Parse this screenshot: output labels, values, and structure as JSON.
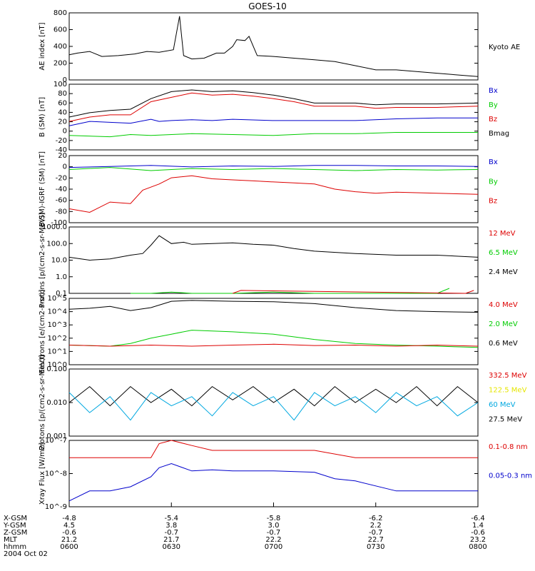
{
  "title": "GOES-10",
  "date_label": "2004 Oct 02",
  "colors": {
    "black": "#000000",
    "red": "#dd0000",
    "green": "#00cc00",
    "blue": "#0000cc",
    "yellow": "#e6e600",
    "cyan": "#00a8e0"
  },
  "bottom_axis": {
    "rows": [
      {
        "label": "X-GSM",
        "values": [
          "-4.8",
          "-5.4",
          "-5.8",
          "-6.2",
          "-6.4"
        ]
      },
      {
        "label": "Y-GSM",
        "values": [
          "4.5",
          "3.8",
          "3.0",
          "2.2",
          "1.4"
        ]
      },
      {
        "label": "Z-GSM",
        "values": [
          "-0.6",
          "-0.7",
          "-0.7",
          "-0.7",
          "-0.6"
        ]
      },
      {
        "label": "MLT",
        "values": [
          "21.2",
          "21.7",
          "22.2",
          "22.7",
          "23.2"
        ]
      },
      {
        "label": "hhmm",
        "values": [
          "0600",
          "0630",
          "0700",
          "0730",
          "0800"
        ]
      }
    ]
  },
  "chart_data": [
    {
      "type": "line",
      "ylabel": "AE index [nT]",
      "ylim": [
        0,
        800
      ],
      "yticks": [
        "0",
        "200",
        "400",
        "600",
        "800"
      ],
      "legend": [
        "Kyoto AE"
      ],
      "series": [
        {
          "name": "Kyoto AE",
          "color": "black",
          "x": [
            0,
            0.02,
            0.05,
            0.08,
            0.12,
            0.16,
            0.19,
            0.22,
            0.255,
            0.27,
            0.28,
            0.3,
            0.33,
            0.36,
            0.38,
            0.4,
            0.41,
            0.43,
            0.44,
            0.46,
            0.5,
            0.55,
            0.6,
            0.65,
            0.7,
            0.75,
            0.8,
            0.85,
            0.9,
            0.95,
            1.0
          ],
          "y": [
            300,
            320,
            340,
            280,
            290,
            310,
            340,
            330,
            360,
            760,
            290,
            250,
            260,
            320,
            320,
            400,
            480,
            470,
            520,
            290,
            280,
            260,
            240,
            220,
            170,
            120,
            120,
            100,
            80,
            60,
            40
          ]
        }
      ]
    },
    {
      "type": "line",
      "ylabel": "B (SM) [nT]",
      "ylim": [
        -45,
        105
      ],
      "yticks": [
        "-40",
        "-20",
        "0",
        "20",
        "40",
        "60",
        "80",
        "100"
      ],
      "legend": [
        "Bx",
        "By",
        "Bz",
        "Bmag"
      ],
      "series": [
        {
          "name": "Bx",
          "color": "blue",
          "x": [
            0,
            0.05,
            0.1,
            0.15,
            0.2,
            0.22,
            0.25,
            0.3,
            0.35,
            0.4,
            0.5,
            0.6,
            0.7,
            0.8,
            0.9,
            1.0
          ],
          "y": [
            10,
            20,
            18,
            16,
            25,
            20,
            22,
            24,
            22,
            25,
            22,
            22,
            22,
            26,
            28,
            28
          ]
        },
        {
          "name": "By",
          "color": "green",
          "x": [
            0,
            0.1,
            0.15,
            0.2,
            0.3,
            0.4,
            0.5,
            0.6,
            0.7,
            0.8,
            0.9,
            1.0
          ],
          "y": [
            -12,
            -15,
            -10,
            -12,
            -8,
            -10,
            -12,
            -8,
            -8,
            -5,
            -5,
            -5
          ]
        },
        {
          "name": "Bz",
          "color": "red",
          "x": [
            0,
            0.05,
            0.1,
            0.15,
            0.2,
            0.25,
            0.3,
            0.35,
            0.4,
            0.45,
            0.5,
            0.55,
            0.6,
            0.7,
            0.75,
            0.8,
            0.9,
            1.0
          ],
          "y": [
            20,
            30,
            35,
            35,
            65,
            75,
            85,
            80,
            82,
            78,
            72,
            65,
            55,
            55,
            50,
            52,
            52,
            55
          ]
        },
        {
          "name": "Bmag",
          "color": "black",
          "x": [
            0,
            0.05,
            0.1,
            0.15,
            0.2,
            0.25,
            0.3,
            0.35,
            0.4,
            0.45,
            0.5,
            0.55,
            0.6,
            0.7,
            0.75,
            0.8,
            0.9,
            1.0
          ],
          "y": [
            30,
            40,
            45,
            48,
            72,
            88,
            92,
            88,
            90,
            86,
            80,
            72,
            62,
            62,
            58,
            60,
            60,
            62
          ]
        }
      ]
    },
    {
      "type": "line",
      "ylabel": "B(SM)-IGRF (SM) [nT]",
      "ylim": [
        -105,
        25
      ],
      "yticks": [
        "-100",
        "-80",
        "-60",
        "-40",
        "-20",
        "0",
        "20"
      ],
      "legend": [
        "Bx",
        "By",
        "Bz"
      ],
      "series": [
        {
          "name": "Bx",
          "color": "blue",
          "x": [
            0,
            0.1,
            0.2,
            0.3,
            0.4,
            0.5,
            0.6,
            0.7,
            0.8,
            0.9,
            1.0
          ],
          "y": [
            2,
            4,
            6,
            3,
            5,
            4,
            6,
            6,
            5,
            5,
            4
          ]
        },
        {
          "name": "By",
          "color": "green",
          "x": [
            0,
            0.1,
            0.2,
            0.3,
            0.4,
            0.5,
            0.6,
            0.7,
            0.8,
            0.9,
            1.0
          ],
          "y": [
            -2,
            2,
            -4,
            0,
            -2,
            0,
            -2,
            -4,
            -2,
            -3,
            -2
          ]
        },
        {
          "name": "Bz",
          "color": "red",
          "x": [
            0,
            0.05,
            0.1,
            0.15,
            0.18,
            0.22,
            0.25,
            0.3,
            0.35,
            0.4,
            0.45,
            0.5,
            0.55,
            0.6,
            0.65,
            0.7,
            0.75,
            0.8,
            0.9,
            1.0
          ],
          "y": [
            -78,
            -85,
            -65,
            -68,
            -42,
            -30,
            -18,
            -14,
            -20,
            -22,
            -24,
            -26,
            -28,
            -30,
            -40,
            -45,
            -48,
            -46,
            -48,
            -50
          ]
        }
      ]
    },
    {
      "type": "line",
      "yscale": "log",
      "ylabel": "Protons [p/(cm2-s-sr-MeV)]",
      "ylim": [
        0.1,
        1000
      ],
      "yticks": [
        "0.1",
        "1.0",
        "10.0",
        "100.0",
        "1000.0"
      ],
      "legend": [
        "12 MeV",
        "6.5 MeV",
        "2.4 MeV"
      ],
      "series": [
        {
          "name": "2.4 MeV",
          "color": "black",
          "x": [
            0,
            0.05,
            0.1,
            0.15,
            0.18,
            0.2,
            0.22,
            0.25,
            0.28,
            0.3,
            0.35,
            0.4,
            0.45,
            0.5,
            0.55,
            0.6,
            0.7,
            0.8,
            0.9,
            1.0
          ],
          "y": [
            15,
            10,
            12,
            20,
            25,
            80,
            300,
            100,
            120,
            90,
            100,
            110,
            90,
            80,
            50,
            35,
            25,
            20,
            20,
            15
          ]
        },
        {
          "name": "6.5 MeV",
          "color": "green",
          "x": [
            0.15,
            0.2,
            0.25,
            0.3,
            0.35,
            0.4,
            0.5,
            0.6,
            0.7,
            0.8,
            0.9,
            0.93
          ],
          "y": [
            0.1,
            0.1,
            0.12,
            0.1,
            0.1,
            0.1,
            0.12,
            0.1,
            0.1,
            0.1,
            0.1,
            0.2
          ]
        },
        {
          "name": "12 MeV",
          "color": "red",
          "x": [
            0.4,
            0.42,
            0.97,
            0.99
          ],
          "y": [
            0.1,
            0.15,
            0.1,
            0.15
          ]
        }
      ]
    },
    {
      "type": "line",
      "yscale": "log",
      "ylabel": "Electrons [e/(cm2-s-sr)]",
      "ylim": [
        1,
        100000
      ],
      "yticks": [
        "10^0",
        "10^1",
        "10^2",
        "10^3",
        "10^4",
        "10^5"
      ],
      "legend": [
        "4.0 MeV",
        "2.0 MeV",
        "0.6 MeV"
      ],
      "series": [
        {
          "name": "0.6 MeV",
          "color": "black",
          "x": [
            0,
            0.05,
            0.1,
            0.15,
            0.2,
            0.25,
            0.3,
            0.4,
            0.5,
            0.6,
            0.7,
            0.8,
            0.9,
            1.0
          ],
          "y": [
            15000,
            18000,
            25000,
            12000,
            20000,
            60000,
            70000,
            60000,
            55000,
            40000,
            20000,
            12000,
            10000,
            9000
          ]
        },
        {
          "name": "2.0 MeV",
          "color": "green",
          "x": [
            0,
            0.1,
            0.15,
            0.2,
            0.25,
            0.3,
            0.35,
            0.4,
            0.5,
            0.6,
            0.7,
            0.8,
            0.9,
            1.0
          ],
          "y": [
            30,
            25,
            40,
            100,
            200,
            400,
            350,
            300,
            200,
            80,
            40,
            30,
            25,
            20
          ]
        },
        {
          "name": "4.0 MeV",
          "color": "red",
          "x": [
            0,
            0.1,
            0.2,
            0.3,
            0.4,
            0.5,
            0.6,
            0.7,
            0.8,
            0.9,
            1.0
          ],
          "y": [
            30,
            25,
            30,
            25,
            30,
            35,
            28,
            30,
            25,
            30,
            25
          ]
        }
      ]
    },
    {
      "type": "line",
      "yscale": "log",
      "ylabel": "Protons [p/(cm2-s-sr-MeV)]",
      "ylim": [
        0.001,
        0.1
      ],
      "yticks": [
        "0.001",
        "0.010",
        "0.100"
      ],
      "legend": [
        "332.5 MeV",
        "122.5 MeV",
        "60 MeV",
        "27.5 MeV"
      ],
      "series": [
        {
          "name": "27.5 MeV",
          "color": "black",
          "x": [
            0,
            0.05,
            0.1,
            0.15,
            0.2,
            0.25,
            0.3,
            0.35,
            0.4,
            0.45,
            0.5,
            0.55,
            0.6,
            0.65,
            0.7,
            0.75,
            0.8,
            0.85,
            0.9,
            0.95,
            1.0
          ],
          "y": [
            0.01,
            0.03,
            0.008,
            0.03,
            0.01,
            0.025,
            0.008,
            0.03,
            0.012,
            0.03,
            0.01,
            0.025,
            0.008,
            0.03,
            0.01,
            0.025,
            0.01,
            0.03,
            0.008,
            0.03,
            0.01
          ]
        },
        {
          "name": "60 MeV",
          "color": "cyan",
          "x": [
            0,
            0.05,
            0.1,
            0.15,
            0.2,
            0.25,
            0.3,
            0.35,
            0.4,
            0.45,
            0.5,
            0.55,
            0.6,
            0.65,
            0.7,
            0.75,
            0.8,
            0.85,
            0.9,
            0.95,
            1.0
          ],
          "y": [
            0.02,
            0.005,
            0.015,
            0.003,
            0.02,
            0.008,
            0.015,
            0.004,
            0.02,
            0.008,
            0.015,
            0.003,
            0.02,
            0.008,
            0.015,
            0.005,
            0.02,
            0.008,
            0.015,
            0.004,
            0.01
          ]
        }
      ]
    },
    {
      "type": "line",
      "yscale": "log",
      "ylabel": "Xray Flux [W/m2]",
      "ylim": [
        1e-09,
        1e-07
      ],
      "yticks": [
        "10^-9",
        "10^-8",
        "10^-7"
      ],
      "legend": [
        "0.1-0.8 nm",
        "0.05-0.3 nm"
      ],
      "series": [
        {
          "name": "0.1-0.8 nm",
          "color": "red",
          "x": [
            0,
            0.1,
            0.2,
            0.22,
            0.25,
            0.3,
            0.35,
            0.4,
            0.5,
            0.6,
            0.7,
            0.8,
            0.9,
            1.0
          ],
          "y": [
            3e-08,
            3e-08,
            3e-08,
            8e-08,
            1e-07,
            7e-08,
            5e-08,
            5e-08,
            5e-08,
            5e-08,
            3e-08,
            3e-08,
            3e-08,
            3e-08
          ]
        },
        {
          "name": "0.05-0.3 nm",
          "color": "blue",
          "x": [
            0,
            0.05,
            0.1,
            0.15,
            0.2,
            0.22,
            0.25,
            0.3,
            0.35,
            0.4,
            0.5,
            0.6,
            0.65,
            0.7,
            0.8,
            0.9,
            1.0
          ],
          "y": [
            1.5e-09,
            3e-09,
            3e-09,
            4e-09,
            8e-09,
            1.5e-08,
            2e-08,
            1.2e-08,
            1.3e-08,
            1.2e-08,
            1.2e-08,
            1.1e-08,
            7e-09,
            6e-09,
            3e-09,
            3e-09,
            3e-09
          ]
        }
      ]
    }
  ]
}
